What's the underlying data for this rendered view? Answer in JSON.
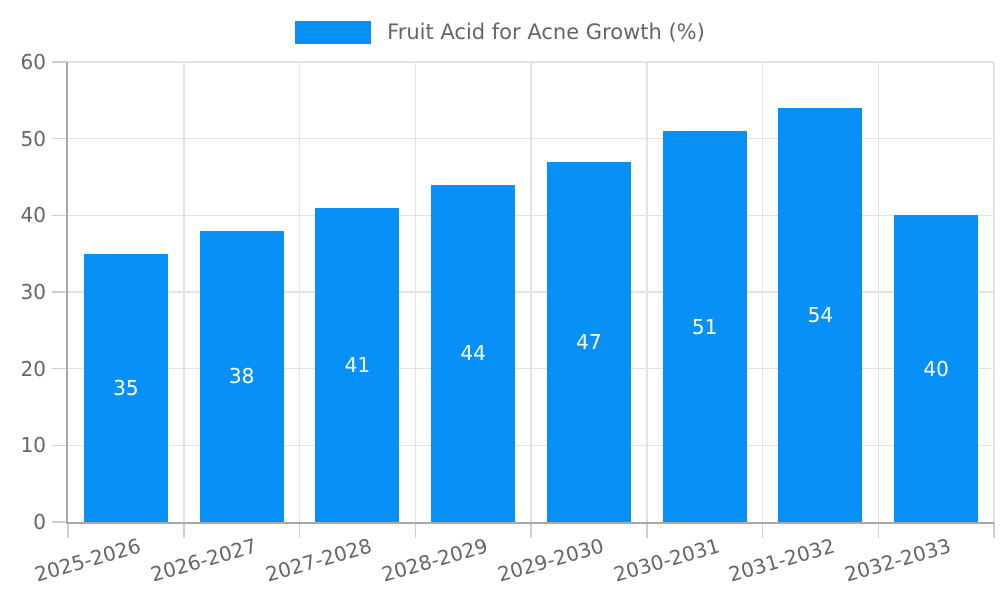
{
  "legend": {
    "label": "Fruit Acid for Acne Growth (%)"
  },
  "colors": {
    "bar": "#0790f5",
    "grid": "#e3e3e3",
    "axis": "#a8a8a8",
    "tick": "#cfcfcf",
    "text": "#666666",
    "value_label": "#ffffff",
    "background": "#ffffff"
  },
  "chart_data": {
    "type": "bar",
    "title": "Fruit Acid for Acne Growth (%)",
    "categories": [
      "2025-2026",
      "2026-2027",
      "2027-2028",
      "2028-2029",
      "2029-2030",
      "2030-2031",
      "2031-2032",
      "2032-2033"
    ],
    "values": [
      35,
      38,
      41,
      44,
      47,
      51,
      54,
      40
    ],
    "series": [
      {
        "name": "Fruit Acid for Acne Growth (%)",
        "values": [
          35,
          38,
          41,
          44,
          47,
          51,
          54,
          40
        ]
      }
    ],
    "xlabel": "",
    "ylabel": "",
    "ylim": [
      0,
      60
    ],
    "yticks": [
      0,
      10,
      20,
      30,
      40,
      50,
      60
    ],
    "grid": true,
    "legend_position": "top",
    "value_labels_position": "inside-center",
    "x_tick_rotation_deg": -16
  }
}
